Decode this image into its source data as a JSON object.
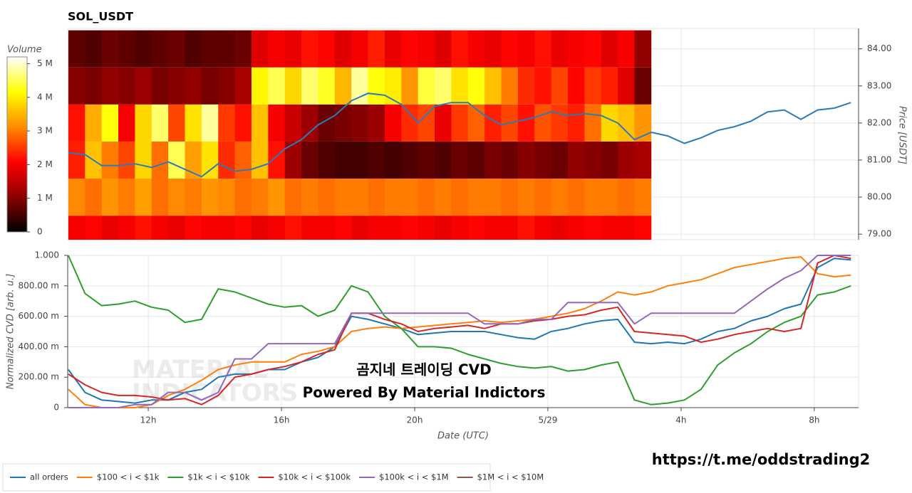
{
  "chart_data": [
    {
      "type": "heatmap",
      "title": "SOL_USDT",
      "colorbar_title": "Volume",
      "y2label": "Price [USDT]",
      "xlim": [
        9.58,
        33.33
      ],
      "y2lim": [
        78.85,
        84.55
      ],
      "y2ticks": [
        {
          "value": 79,
          "label": "79.00"
        },
        {
          "value": 80,
          "label": "80.00"
        },
        {
          "value": 81,
          "label": "81.00"
        },
        {
          "value": 82,
          "label": "82.00"
        },
        {
          "value": 83,
          "label": "83.00"
        },
        {
          "value": 84,
          "label": "84.00"
        }
      ],
      "zlim": [
        0,
        5.2
      ],
      "zticks": [
        0,
        {
          "value": 1,
          "label": "1 M"
        },
        {
          "value": 2,
          "label": "2 M"
        },
        {
          "value": 3,
          "label": "3 M"
        },
        {
          "value": 4,
          "label": "4 M"
        },
        {
          "value": 5,
          "label": "5 M"
        }
      ],
      "colorscale": [
        "#000000",
        "#8b0000",
        "#ff0000",
        "#ff8c00",
        "#ffff00",
        "#ffffff"
      ],
      "x_bins": [
        9.6,
        10.1,
        10.6,
        11.1,
        11.6,
        12.1,
        12.6,
        13.1,
        13.6,
        14.1,
        14.6,
        15.1,
        15.6,
        16.1,
        16.6,
        17.1,
        17.6,
        18.1,
        18.6,
        19.1,
        19.6,
        20.1,
        20.6,
        21.1,
        21.6,
        22.1,
        22.6,
        23.1,
        23.6,
        24.1,
        24.6,
        25.1,
        25.6,
        26.1,
        26.6,
        27.1
      ],
      "y_bins": [
        78.5,
        79.5,
        80.5,
        81.5,
        82.5,
        83.5,
        84.5
      ],
      "z": [
        [
          2.0,
          2.1,
          1.9,
          2.0,
          2.2,
          2.0,
          1.9,
          2.1,
          2.0,
          2.0,
          2.1,
          1.9,
          2.0,
          2.2,
          2.0,
          2.0,
          2.1,
          1.9,
          2.0,
          2.0,
          2.1,
          2.0,
          1.9,
          2.0,
          2.1,
          2.0,
          2.0,
          2.2,
          2.0,
          1.9,
          2.0,
          2.1,
          2.0,
          2.0,
          2.1
        ],
        [
          3.1,
          2.9,
          3.2,
          3.0,
          3.3,
          2.9,
          3.1,
          3.0,
          3.2,
          3.1,
          2.9,
          3.0,
          3.2,
          2.9,
          3.0,
          2.9,
          3.0,
          3.0,
          2.9,
          3.0,
          3.0,
          2.9,
          3.0,
          2.9,
          3.0,
          3.0,
          2.9,
          3.0,
          2.9,
          3.0,
          2.9,
          3.0,
          3.0,
          2.9,
          3.0
        ],
        [
          2.3,
          3.6,
          3.0,
          2.6,
          3.8,
          2.9,
          4.5,
          3.3,
          3.9,
          2.4,
          2.8,
          3.6,
          2.2,
          1.2,
          0.8,
          0.6,
          0.5,
          0.5,
          0.6,
          0.5,
          0.6,
          0.7,
          0.6,
          0.8,
          0.7,
          0.9,
          0.8,
          1.0,
          0.9,
          0.8,
          1.1,
          1.0,
          0.9,
          1.2,
          1.3
        ],
        [
          2.2,
          3.4,
          4.2,
          2.0,
          3.8,
          4.6,
          2.6,
          3.9,
          4.8,
          2.5,
          2.2,
          3.6,
          2.0,
          1.6,
          1.2,
          0.8,
          0.9,
          1.0,
          1.2,
          2.0,
          2.4,
          2.6,
          1.9,
          2.5,
          2.8,
          2.3,
          2.6,
          2.2,
          2.7,
          2.5,
          2.3,
          2.9,
          3.8,
          3.6,
          3.2
        ],
        [
          1.0,
          0.9,
          1.1,
          1.0,
          1.2,
          0.9,
          1.0,
          1.1,
          0.9,
          1.0,
          1.3,
          4.1,
          4.5,
          3.8,
          4.6,
          4.3,
          3.5,
          4.8,
          4.2,
          4.0,
          3.2,
          4.4,
          4.6,
          3.9,
          4.2,
          3.6,
          3.0,
          2.4,
          2.2,
          2.6,
          2.1,
          2.5,
          2.3,
          1.8,
          0.8
        ],
        [
          0.7,
          0.6,
          0.8,
          0.7,
          0.6,
          0.7,
          0.8,
          0.6,
          0.7,
          0.7,
          0.8,
          1.8,
          2.0,
          1.9,
          2.2,
          2.1,
          1.8,
          2.0,
          2.3,
          1.9,
          2.1,
          2.0,
          1.8,
          2.2,
          2.0,
          1.9,
          2.1,
          2.0,
          2.2,
          1.9,
          2.0,
          2.1,
          1.8,
          2.0,
          1.1
        ]
      ],
      "line": {
        "color": "#2b7bb9",
        "axis": "y2",
        "x": [
          9.6,
          10.1,
          10.6,
          11.1,
          11.6,
          12.1,
          12.6,
          13.1,
          13.6,
          14.1,
          14.6,
          15.1,
          15.6,
          16.1,
          16.6,
          17.1,
          17.6,
          18.1,
          18.6,
          19.1,
          19.6,
          20.1,
          20.6,
          21.1,
          21.6,
          22.1,
          22.6,
          23.1,
          23.6,
          24.1,
          24.6,
          25.1,
          25.6,
          26.1,
          26.6,
          27.1,
          27.6,
          28.1,
          28.6,
          29.1,
          29.6,
          30.1,
          30.6,
          31.1,
          31.6,
          32.1,
          32.6,
          33.1
        ],
        "values": [
          81.2,
          81.15,
          80.85,
          80.85,
          80.9,
          80.8,
          80.95,
          80.75,
          80.55,
          80.9,
          80.7,
          80.75,
          80.9,
          81.3,
          81.55,
          81.95,
          82.2,
          82.6,
          82.8,
          82.75,
          82.5,
          82.0,
          82.45,
          82.55,
          82.55,
          82.2,
          81.95,
          82.05,
          82.15,
          82.3,
          82.2,
          82.25,
          82.2,
          82.0,
          81.55,
          81.75,
          81.65,
          81.45,
          81.6,
          81.8,
          81.9,
          82.05,
          82.3,
          82.35,
          82.1,
          82.35,
          82.4,
          82.55
        ]
      }
    },
    {
      "type": "line",
      "xlabel": "Date (UTC)",
      "ylabel": "Normalized CVD [arb. u.]",
      "xlim": [
        9.58,
        33.33
      ],
      "ylim": [
        0,
        1.0
      ],
      "xticks": [
        {
          "value": 12,
          "label": "12h"
        },
        {
          "value": 16,
          "label": "16h"
        },
        {
          "value": 20,
          "label": "20h"
        },
        {
          "value": 24,
          "label": "5/29"
        },
        {
          "value": 28,
          "label": "4h"
        },
        {
          "value": 32,
          "label": "8h"
        }
      ],
      "yticks": [
        0,
        {
          "value": 0.2,
          "label": "200.00 m"
        },
        {
          "value": 0.4,
          "label": "400.00 m"
        },
        {
          "value": 0.6,
          "label": "600.00 m"
        },
        {
          "value": 0.8,
          "label": "800.00 m"
        },
        {
          "value": 1.0,
          "label": "1.000"
        }
      ],
      "grid": true,
      "x": [
        9.6,
        10.1,
        10.6,
        11.1,
        11.6,
        12.1,
        12.6,
        13.1,
        13.6,
        14.1,
        14.6,
        15.1,
        15.6,
        16.1,
        16.6,
        17.1,
        17.6,
        18.1,
        18.6,
        19.1,
        19.6,
        20.1,
        20.6,
        21.1,
        21.6,
        22.1,
        22.6,
        23.1,
        23.6,
        24.1,
        24.6,
        25.1,
        25.6,
        26.1,
        26.6,
        27.1,
        27.6,
        28.1,
        28.6,
        29.1,
        29.6,
        30.1,
        30.6,
        31.1,
        31.6,
        32.1,
        32.6,
        33.1
      ],
      "series": [
        {
          "name": "all orders",
          "color": "#1f77b4",
          "values": [
            0.25,
            0.1,
            0.05,
            0.04,
            0.03,
            0.05,
            0.05,
            0.1,
            0.12,
            0.2,
            0.22,
            0.22,
            0.25,
            0.25,
            0.3,
            0.33,
            0.4,
            0.6,
            0.58,
            0.55,
            0.52,
            0.48,
            0.49,
            0.5,
            0.5,
            0.5,
            0.48,
            0.46,
            0.45,
            0.5,
            0.52,
            0.55,
            0.57,
            0.58,
            0.43,
            0.42,
            0.43,
            0.42,
            0.45,
            0.5,
            0.52,
            0.57,
            0.6,
            0.65,
            0.68,
            0.92,
            0.98,
            0.97
          ]
        },
        {
          "name": "$100 < i < $1k",
          "color": "#ff7f0e",
          "values": [
            0.12,
            0.02,
            0,
            0,
            0,
            0.02,
            0.08,
            0.12,
            0.18,
            0.25,
            0.28,
            0.3,
            0.3,
            0.3,
            0.35,
            0.37,
            0.4,
            0.5,
            0.52,
            0.53,
            0.52,
            0.53,
            0.54,
            0.55,
            0.56,
            0.57,
            0.56,
            0.57,
            0.58,
            0.6,
            0.62,
            0.65,
            0.7,
            0.76,
            0.74,
            0.76,
            0.8,
            0.82,
            0.84,
            0.88,
            0.92,
            0.94,
            0.96,
            0.98,
            0.99,
            0.88,
            0.86,
            0.87
          ]
        },
        {
          "name": "$1k < i < $10k",
          "color": "#2ca02c",
          "values": [
            1.0,
            0.75,
            0.67,
            0.68,
            0.7,
            0.66,
            0.64,
            0.56,
            0.58,
            0.78,
            0.76,
            0.72,
            0.68,
            0.66,
            0.67,
            0.6,
            0.64,
            0.8,
            0.76,
            0.6,
            0.52,
            0.4,
            0.4,
            0.39,
            0.35,
            0.32,
            0.29,
            0.27,
            0.26,
            0.27,
            0.24,
            0.25,
            0.28,
            0.3,
            0.05,
            0.02,
            0.03,
            0.05,
            0.12,
            0.28,
            0.36,
            0.42,
            0.5,
            0.56,
            0.6,
            0.74,
            0.76,
            0.8
          ]
        },
        {
          "name": "$10k < i < $100k",
          "color": "#d62728",
          "values": [
            0.22,
            0.15,
            0.1,
            0.08,
            0.08,
            0.07,
            0.05,
            0.06,
            0.02,
            0.08,
            0.2,
            0.22,
            0.25,
            0.27,
            0.3,
            0.35,
            0.38,
            0.62,
            0.62,
            0.58,
            0.55,
            0.5,
            0.52,
            0.53,
            0.54,
            0.52,
            0.55,
            0.55,
            0.57,
            0.58,
            0.6,
            0.61,
            0.64,
            0.66,
            0.5,
            0.49,
            0.48,
            0.47,
            0.43,
            0.45,
            0.48,
            0.5,
            0.52,
            0.5,
            0.52,
            0.95,
            1.0,
            0.98
          ]
        },
        {
          "name": "$100k < i < $1M",
          "color": "#9467bd",
          "values": [
            0,
            0,
            0,
            0,
            0.02,
            0.02,
            0.1,
            0.1,
            0.05,
            0.1,
            0.32,
            0.32,
            0.42,
            0.42,
            0.42,
            0.42,
            0.42,
            0.62,
            0.62,
            0.62,
            0.62,
            0.62,
            0.62,
            0.62,
            0.62,
            0.55,
            0.55,
            0.55,
            0.58,
            0.58,
            0.69,
            0.69,
            0.69,
            0.69,
            0.55,
            0.62,
            0.62,
            0.62,
            0.62,
            0.62,
            0.62,
            0.7,
            0.78,
            0.85,
            0.9,
            1.0,
            1.0,
            1.0
          ]
        },
        {
          "name": "$1M < i < $10M",
          "color": "#8c564b",
          "values": [
            null,
            null,
            null,
            null,
            null,
            null,
            null,
            null,
            null,
            null,
            null,
            null,
            null,
            null,
            null,
            null,
            null,
            null,
            null,
            null,
            null,
            null,
            null,
            null,
            null,
            null,
            null,
            null,
            null,
            null,
            null,
            null,
            null,
            null,
            null,
            null,
            null,
            null,
            null,
            null,
            null,
            null,
            null,
            null,
            null,
            null,
            null,
            null
          ]
        }
      ],
      "watermark": [
        "MATERIAL",
        "INDICATORS"
      ],
      "annotations": [
        "곰지네 트레이딩 CVD",
        "Powered By Material Indictors"
      ]
    }
  ],
  "link": "https://t.me/oddstrading2"
}
